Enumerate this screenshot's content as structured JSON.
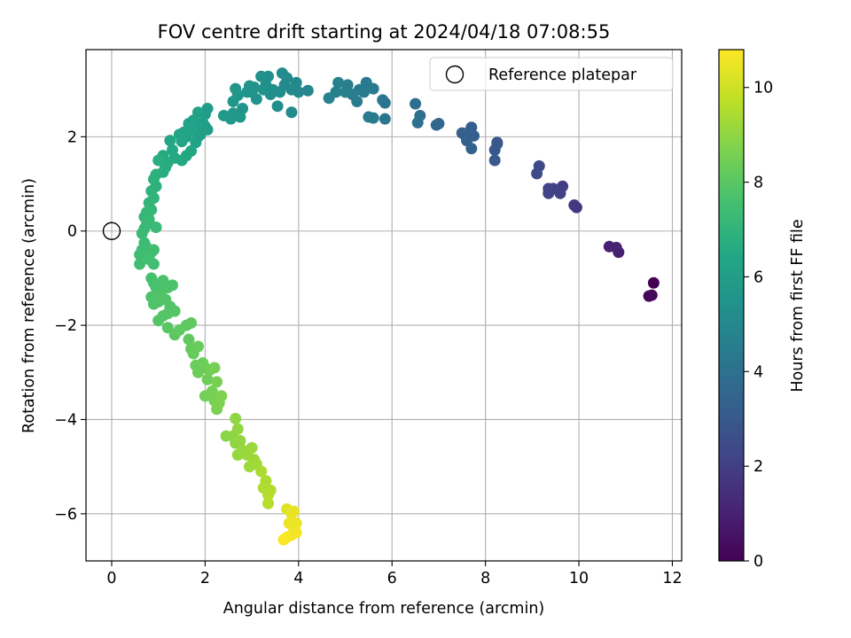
{
  "chart_data": {
    "type": "scatter",
    "title": "FOV centre drift starting at 2024/04/18 07:08:55",
    "xlabel": "Angular distance from reference (arcmin)",
    "ylabel": "Rotation from reference (arcmin)",
    "colorbar_label": "Hours from first FF file",
    "xlim": [
      -0.55,
      12.2
    ],
    "ylim": [
      -7.0,
      3.85
    ],
    "clim": [
      0,
      10.8
    ],
    "xticks": [
      0,
      2,
      4,
      6,
      8,
      10,
      12
    ],
    "yticks": [
      -6,
      -4,
      -2,
      0,
      2
    ],
    "cticks": [
      0,
      2,
      4,
      6,
      8,
      10
    ],
    "grid": true,
    "legend": {
      "position": "top-right",
      "entries": [
        {
          "label": "Reference platepar",
          "marker": "open-circle"
        }
      ]
    },
    "reference_point": {
      "x": 0,
      "y": 0
    },
    "colormap": "viridis",
    "points": [
      {
        "x": 11.6,
        "y": -1.1,
        "h": 0.0
      },
      {
        "x": 11.5,
        "y": -1.38,
        "h": 0.1
      },
      {
        "x": 11.56,
        "y": -1.36,
        "h": 0.2
      },
      {
        "x": 10.85,
        "y": -0.45,
        "h": 0.9
      },
      {
        "x": 10.65,
        "y": -0.33,
        "h": 1.0
      },
      {
        "x": 10.8,
        "y": -0.35,
        "h": 1.05
      },
      {
        "x": 9.95,
        "y": 0.5,
        "h": 1.7
      },
      {
        "x": 9.9,
        "y": 0.55,
        "h": 1.75
      },
      {
        "x": 9.65,
        "y": 0.95,
        "h": 2.0
      },
      {
        "x": 9.6,
        "y": 0.8,
        "h": 2.05
      },
      {
        "x": 9.45,
        "y": 0.9,
        "h": 2.1
      },
      {
        "x": 9.35,
        "y": 0.8,
        "h": 2.15
      },
      {
        "x": 9.35,
        "y": 0.9,
        "h": 2.2
      },
      {
        "x": 9.15,
        "y": 1.38,
        "h": 2.4
      },
      {
        "x": 9.1,
        "y": 1.22,
        "h": 2.45
      },
      {
        "x": 8.25,
        "y": 1.85,
        "h": 2.9
      },
      {
        "x": 8.2,
        "y": 1.72,
        "h": 2.95
      },
      {
        "x": 8.2,
        "y": 1.5,
        "h": 3.0
      },
      {
        "x": 8.25,
        "y": 1.88,
        "h": 2.92
      },
      {
        "x": 7.7,
        "y": 2.2,
        "h": 3.2
      },
      {
        "x": 7.75,
        "y": 2.02,
        "h": 3.25
      },
      {
        "x": 7.55,
        "y": 2.05,
        "h": 3.3
      },
      {
        "x": 7.6,
        "y": 1.92,
        "h": 3.3
      },
      {
        "x": 7.5,
        "y": 2.08,
        "h": 3.35
      },
      {
        "x": 7.7,
        "y": 1.75,
        "h": 3.4
      },
      {
        "x": 7.65,
        "y": 2.1,
        "h": 3.28
      },
      {
        "x": 7.0,
        "y": 2.28,
        "h": 3.6
      },
      {
        "x": 6.95,
        "y": 2.25,
        "h": 3.62
      },
      {
        "x": 6.6,
        "y": 2.45,
        "h": 3.9
      },
      {
        "x": 6.5,
        "y": 2.7,
        "h": 3.95
      },
      {
        "x": 6.55,
        "y": 2.3,
        "h": 4.0
      },
      {
        "x": 5.85,
        "y": 2.72,
        "h": 4.2
      },
      {
        "x": 5.8,
        "y": 2.78,
        "h": 4.22
      },
      {
        "x": 5.85,
        "y": 2.38,
        "h": 4.25
      },
      {
        "x": 5.6,
        "y": 3.02,
        "h": 4.35
      },
      {
        "x": 5.5,
        "y": 3.05,
        "h": 4.4
      },
      {
        "x": 5.45,
        "y": 3.15,
        "h": 4.42
      },
      {
        "x": 5.4,
        "y": 2.95,
        "h": 4.45
      },
      {
        "x": 5.3,
        "y": 3.0,
        "h": 4.48
      },
      {
        "x": 5.5,
        "y": 2.42,
        "h": 4.4
      },
      {
        "x": 5.6,
        "y": 2.4,
        "h": 4.38
      },
      {
        "x": 5.25,
        "y": 2.75,
        "h": 4.5
      },
      {
        "x": 5.15,
        "y": 2.9,
        "h": 4.55
      },
      {
        "x": 5.05,
        "y": 3.1,
        "h": 4.6
      },
      {
        "x": 5.0,
        "y": 2.95,
        "h": 4.62
      },
      {
        "x": 4.85,
        "y": 3.15,
        "h": 4.7
      },
      {
        "x": 4.8,
        "y": 2.95,
        "h": 4.72
      },
      {
        "x": 4.65,
        "y": 2.82,
        "h": 4.8
      },
      {
        "x": 4.2,
        "y": 2.98,
        "h": 4.95
      },
      {
        "x": 4.0,
        "y": 2.95,
        "h": 5.0
      },
      {
        "x": 3.95,
        "y": 3.15,
        "h": 5.05
      },
      {
        "x": 3.85,
        "y": 3.0,
        "h": 5.08
      },
      {
        "x": 3.85,
        "y": 2.52,
        "h": 5.1
      },
      {
        "x": 3.75,
        "y": 3.25,
        "h": 5.12
      },
      {
        "x": 3.7,
        "y": 3.1,
        "h": 5.15
      },
      {
        "x": 3.65,
        "y": 3.35,
        "h": 5.18
      },
      {
        "x": 3.6,
        "y": 2.95,
        "h": 5.2
      },
      {
        "x": 3.55,
        "y": 2.65,
        "h": 5.22
      },
      {
        "x": 3.45,
        "y": 3.0,
        "h": 5.28
      },
      {
        "x": 3.4,
        "y": 2.9,
        "h": 5.3
      },
      {
        "x": 3.35,
        "y": 3.28,
        "h": 5.32
      },
      {
        "x": 3.3,
        "y": 3.1,
        "h": 5.35
      },
      {
        "x": 3.25,
        "y": 3.0,
        "h": 5.38
      },
      {
        "x": 3.2,
        "y": 3.28,
        "h": 5.4
      },
      {
        "x": 3.1,
        "y": 2.8,
        "h": 5.45
      },
      {
        "x": 3.05,
        "y": 3.05,
        "h": 5.48
      },
      {
        "x": 3.0,
        "y": 2.95,
        "h": 5.5
      },
      {
        "x": 2.95,
        "y": 3.08,
        "h": 5.52
      },
      {
        "x": 2.9,
        "y": 2.95,
        "h": 5.55
      },
      {
        "x": 2.8,
        "y": 2.6,
        "h": 5.6
      },
      {
        "x": 2.75,
        "y": 2.42,
        "h": 5.65
      },
      {
        "x": 2.7,
        "y": 2.88,
        "h": 5.68
      },
      {
        "x": 2.65,
        "y": 3.02,
        "h": 5.7
      },
      {
        "x": 2.6,
        "y": 2.5,
        "h": 5.72
      },
      {
        "x": 2.6,
        "y": 2.75,
        "h": 5.74
      },
      {
        "x": 2.55,
        "y": 2.38,
        "h": 5.78
      },
      {
        "x": 2.4,
        "y": 2.45,
        "h": 5.82
      },
      {
        "x": 2.0,
        "y": 2.48,
        "h": 5.9
      },
      {
        "x": 2.05,
        "y": 2.6,
        "h": 5.92
      },
      {
        "x": 2.05,
        "y": 2.15,
        "h": 5.95
      },
      {
        "x": 2.0,
        "y": 2.22,
        "h": 5.98
      },
      {
        "x": 1.95,
        "y": 2.3,
        "h": 6.0
      },
      {
        "x": 1.9,
        "y": 2.05,
        "h": 6.05
      },
      {
        "x": 1.85,
        "y": 2.0,
        "h": 6.1
      },
      {
        "x": 1.8,
        "y": 2.25,
        "h": 6.12
      },
      {
        "x": 1.85,
        "y": 2.52,
        "h": 6.15
      },
      {
        "x": 1.75,
        "y": 2.35,
        "h": 6.18
      },
      {
        "x": 1.7,
        "y": 2.15,
        "h": 6.2
      },
      {
        "x": 1.65,
        "y": 2.28,
        "h": 6.22
      },
      {
        "x": 1.6,
        "y": 2.0,
        "h": 6.25
      },
      {
        "x": 1.55,
        "y": 2.1,
        "h": 6.28
      },
      {
        "x": 1.5,
        "y": 1.9,
        "h": 6.3
      },
      {
        "x": 1.45,
        "y": 2.05,
        "h": 6.32
      },
      {
        "x": 1.8,
        "y": 1.88,
        "h": 6.2
      },
      {
        "x": 1.7,
        "y": 1.7,
        "h": 6.4
      },
      {
        "x": 1.6,
        "y": 1.6,
        "h": 6.45
      },
      {
        "x": 1.5,
        "y": 1.5,
        "h": 6.5
      },
      {
        "x": 1.35,
        "y": 1.55,
        "h": 6.55
      },
      {
        "x": 1.3,
        "y": 1.72,
        "h": 6.5
      },
      {
        "x": 1.25,
        "y": 1.92,
        "h": 6.4
      },
      {
        "x": 1.2,
        "y": 1.45,
        "h": 6.6
      },
      {
        "x": 1.1,
        "y": 1.6,
        "h": 6.62
      },
      {
        "x": 1.1,
        "y": 1.25,
        "h": 6.7
      },
      {
        "x": 1.15,
        "y": 1.35,
        "h": 6.68
      },
      {
        "x": 1.0,
        "y": 1.5,
        "h": 6.72
      },
      {
        "x": 0.95,
        "y": 1.2,
        "h": 6.8
      },
      {
        "x": 0.95,
        "y": 0.95,
        "h": 6.85
      },
      {
        "x": 0.9,
        "y": 1.1,
        "h": 6.9
      },
      {
        "x": 0.85,
        "y": 0.85,
        "h": 6.95
      },
      {
        "x": 0.9,
        "y": 0.7,
        "h": 7.0
      },
      {
        "x": 0.8,
        "y": 0.6,
        "h": 7.05
      },
      {
        "x": 0.85,
        "y": 0.45,
        "h": 7.1
      },
      {
        "x": 0.75,
        "y": 0.4,
        "h": 7.12
      },
      {
        "x": 0.7,
        "y": 0.3,
        "h": 7.15
      },
      {
        "x": 0.8,
        "y": 0.25,
        "h": 7.2
      },
      {
        "x": 0.75,
        "y": 0.15,
        "h": 7.22
      },
      {
        "x": 0.7,
        "y": 0.05,
        "h": 7.25
      },
      {
        "x": 0.65,
        "y": -0.05,
        "h": 7.3
      },
      {
        "x": 0.95,
        "y": 0.08,
        "h": 7.28
      },
      {
        "x": 0.7,
        "y": -0.25,
        "h": 7.35
      },
      {
        "x": 0.65,
        "y": -0.4,
        "h": 7.4
      },
      {
        "x": 0.6,
        "y": -0.5,
        "h": 7.42
      },
      {
        "x": 0.6,
        "y": -0.7,
        "h": 7.45
      },
      {
        "x": 0.75,
        "y": -0.35,
        "h": 7.4
      },
      {
        "x": 0.85,
        "y": -0.45,
        "h": 7.45
      },
      {
        "x": 0.9,
        "y": -0.4,
        "h": 7.48
      },
      {
        "x": 0.8,
        "y": -0.6,
        "h": 7.5
      },
      {
        "x": 0.9,
        "y": -0.7,
        "h": 7.52
      },
      {
        "x": 0.85,
        "y": -1.0,
        "h": 7.6
      },
      {
        "x": 0.9,
        "y": -1.1,
        "h": 7.62
      },
      {
        "x": 0.95,
        "y": -1.2,
        "h": 7.65
      },
      {
        "x": 1.05,
        "y": -1.15,
        "h": 7.67
      },
      {
        "x": 1.1,
        "y": -1.05,
        "h": 7.7
      },
      {
        "x": 1.2,
        "y": -1.2,
        "h": 7.72
      },
      {
        "x": 1.3,
        "y": -1.15,
        "h": 7.74
      },
      {
        "x": 0.85,
        "y": -1.4,
        "h": 7.75
      },
      {
        "x": 0.9,
        "y": -1.55,
        "h": 7.78
      },
      {
        "x": 1.0,
        "y": -1.5,
        "h": 7.8
      },
      {
        "x": 1.05,
        "y": -1.35,
        "h": 7.8
      },
      {
        "x": 1.15,
        "y": -1.45,
        "h": 7.82
      },
      {
        "x": 1.25,
        "y": -1.6,
        "h": 7.85
      },
      {
        "x": 1.2,
        "y": -1.75,
        "h": 7.88
      },
      {
        "x": 1.35,
        "y": -1.7,
        "h": 7.9
      },
      {
        "x": 1.0,
        "y": -1.9,
        "h": 7.9
      },
      {
        "x": 1.1,
        "y": -1.8,
        "h": 7.92
      },
      {
        "x": 1.2,
        "y": -2.05,
        "h": 8.0
      },
      {
        "x": 1.35,
        "y": -2.2,
        "h": 8.05
      },
      {
        "x": 1.45,
        "y": -2.1,
        "h": 8.08
      },
      {
        "x": 1.6,
        "y": -2.0,
        "h": 8.1
      },
      {
        "x": 1.7,
        "y": -1.95,
        "h": 8.12
      },
      {
        "x": 1.65,
        "y": -2.3,
        "h": 8.15
      },
      {
        "x": 1.7,
        "y": -2.5,
        "h": 8.2
      },
      {
        "x": 1.75,
        "y": -2.6,
        "h": 8.25
      },
      {
        "x": 1.85,
        "y": -2.45,
        "h": 8.28
      },
      {
        "x": 1.8,
        "y": -2.85,
        "h": 8.32
      },
      {
        "x": 1.85,
        "y": -3.0,
        "h": 8.35
      },
      {
        "x": 1.95,
        "y": -2.8,
        "h": 8.38
      },
      {
        "x": 2.0,
        "y": -2.9,
        "h": 8.4
      },
      {
        "x": 2.05,
        "y": -3.15,
        "h": 8.42
      },
      {
        "x": 2.1,
        "y": -2.95,
        "h": 8.45
      },
      {
        "x": 2.0,
        "y": -3.5,
        "h": 8.5
      },
      {
        "x": 2.15,
        "y": -3.4,
        "h": 8.55
      },
      {
        "x": 2.2,
        "y": -2.9,
        "h": 8.52
      },
      {
        "x": 2.25,
        "y": -3.2,
        "h": 8.58
      },
      {
        "x": 2.2,
        "y": -3.6,
        "h": 8.62
      },
      {
        "x": 2.25,
        "y": -3.78,
        "h": 8.65
      },
      {
        "x": 2.3,
        "y": -3.65,
        "h": 8.68
      },
      {
        "x": 2.35,
        "y": -3.5,
        "h": 8.7
      },
      {
        "x": 2.45,
        "y": -4.35,
        "h": 8.9
      },
      {
        "x": 2.6,
        "y": -4.35,
        "h": 8.92
      },
      {
        "x": 2.65,
        "y": -4.5,
        "h": 8.95
      },
      {
        "x": 2.65,
        "y": -3.98,
        "h": 9.0
      },
      {
        "x": 2.7,
        "y": -4.2,
        "h": 9.02
      },
      {
        "x": 2.75,
        "y": -4.45,
        "h": 9.05
      },
      {
        "x": 2.7,
        "y": -4.75,
        "h": 9.08
      },
      {
        "x": 2.8,
        "y": -4.65,
        "h": 9.1
      },
      {
        "x": 2.9,
        "y": -4.75,
        "h": 9.15
      },
      {
        "x": 3.0,
        "y": -4.6,
        "h": 9.18
      },
      {
        "x": 3.05,
        "y": -4.85,
        "h": 9.2
      },
      {
        "x": 2.95,
        "y": -5.0,
        "h": 9.22
      },
      {
        "x": 3.1,
        "y": -4.95,
        "h": 9.25
      },
      {
        "x": 3.2,
        "y": -5.1,
        "h": 9.4
      },
      {
        "x": 3.3,
        "y": -5.3,
        "h": 9.45
      },
      {
        "x": 3.25,
        "y": -5.45,
        "h": 9.48
      },
      {
        "x": 3.4,
        "y": -5.5,
        "h": 9.5
      },
      {
        "x": 3.35,
        "y": -5.6,
        "h": 9.55
      },
      {
        "x": 3.35,
        "y": -5.78,
        "h": 9.6
      },
      {
        "x": 3.75,
        "y": -5.9,
        "h": 10.3
      },
      {
        "x": 3.85,
        "y": -6.0,
        "h": 10.4
      },
      {
        "x": 3.9,
        "y": -5.95,
        "h": 10.45
      },
      {
        "x": 3.8,
        "y": -6.2,
        "h": 10.5
      },
      {
        "x": 3.9,
        "y": -6.3,
        "h": 10.55
      },
      {
        "x": 3.95,
        "y": -6.4,
        "h": 10.6
      },
      {
        "x": 3.85,
        "y": -6.45,
        "h": 10.65
      },
      {
        "x": 3.75,
        "y": -6.5,
        "h": 10.7
      },
      {
        "x": 3.68,
        "y": -6.55,
        "h": 10.75
      },
      {
        "x": 3.95,
        "y": -6.2,
        "h": 10.5
      }
    ]
  }
}
